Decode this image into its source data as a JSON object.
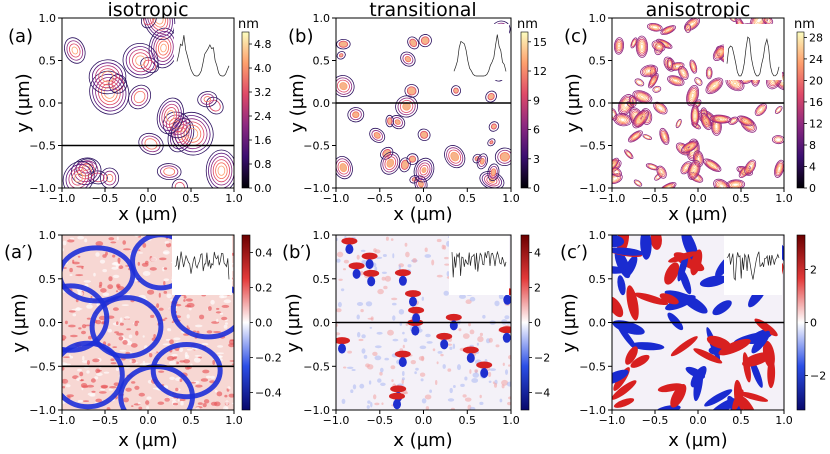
{
  "figure": {
    "x_label": "x (µm)",
    "y_label": "y (µm)",
    "axis_ticks": [
      "−1.0",
      "−0.5",
      "0.0",
      "0.5",
      "1.0"
    ],
    "axis_tick_values": [
      -1.0,
      -0.5,
      0.0,
      0.5,
      1.0
    ]
  },
  "chart_data": [
    {
      "type": "heatmap",
      "style": "contour",
      "label": "(a)",
      "title": "isotropic",
      "unit": "nm",
      "xlim": [
        -1,
        1
      ],
      "ylim": [
        -1,
        1
      ],
      "colorbar_ticks": [
        "0.0",
        "0.8",
        "1.6",
        "2.4",
        "3.2",
        "4.0",
        "4.8"
      ],
      "colorbar_values": [
        0.0,
        0.8,
        1.6,
        2.4,
        3.2,
        4.0,
        4.8
      ],
      "colorbar_range": [
        0,
        5.2
      ],
      "line_cut_y": -0.5,
      "inset": "height profile along cut",
      "colormap": [
        "#000004",
        "#3b0f70",
        "#8c2981",
        "#de4968",
        "#fe9f6d",
        "#fcfdbf"
      ]
    },
    {
      "type": "heatmap",
      "style": "contour",
      "label": "(b)",
      "title": "transitional",
      "unit": "nm",
      "xlim": [
        -1,
        1
      ],
      "ylim": [
        -1,
        1
      ],
      "colorbar_ticks": [
        "0",
        "3",
        "6",
        "9",
        "12",
        "15"
      ],
      "colorbar_values": [
        0,
        3,
        6,
        9,
        12,
        15
      ],
      "colorbar_range": [
        0,
        16
      ],
      "line_cut_y": 0.0,
      "inset": "height profile along cut",
      "colormap": [
        "#000004",
        "#3b0f70",
        "#8c2981",
        "#de4968",
        "#fe9f6d",
        "#fcfdbf"
      ]
    },
    {
      "type": "heatmap",
      "style": "contour",
      "label": "(c)",
      "title": "anisotropic",
      "unit": "nm",
      "xlim": [
        -1,
        1
      ],
      "ylim": [
        -1,
        1
      ],
      "colorbar_ticks": [
        "0",
        "4",
        "8",
        "12",
        "16",
        "20",
        "24",
        "28"
      ],
      "colorbar_values": [
        0,
        4,
        8,
        12,
        16,
        20,
        24,
        28
      ],
      "colorbar_range": [
        0,
        29
      ],
      "line_cut_y": 0.0,
      "inset": "height profile along cut",
      "colormap": [
        "#000004",
        "#3b0f70",
        "#8c2981",
        "#de4968",
        "#fe9f6d",
        "#fcfdbf"
      ]
    },
    {
      "type": "heatmap",
      "style": "image",
      "label": "(a′)",
      "xlim": [
        -1,
        1
      ],
      "ylim": [
        -1,
        1
      ],
      "colorbar_ticks": [
        "0.4",
        "0.2",
        "0.0",
        "−0.2",
        "−0.4"
      ],
      "colorbar_values": [
        0.4,
        0.2,
        0.0,
        -0.2,
        -0.4
      ],
      "colorbar_range": [
        -0.5,
        0.5
      ],
      "line_cut_y": -0.5,
      "inset": "curvature profile along cut",
      "colormap": [
        "#08086b",
        "#2b4ee6",
        "#ffffff",
        "#e33a3a",
        "#6b0000"
      ]
    },
    {
      "type": "heatmap",
      "style": "image",
      "label": "(b′)",
      "xlim": [
        -1,
        1
      ],
      "ylim": [
        -1,
        1
      ],
      "colorbar_ticks": [
        "4",
        "2",
        "0",
        "−2",
        "−4"
      ],
      "colorbar_values": [
        4,
        2,
        0,
        -2,
        -4
      ],
      "colorbar_range": [
        -5,
        5
      ],
      "line_cut_y": 0.0,
      "inset": "curvature profile along cut",
      "colormap": [
        "#08086b",
        "#2b4ee6",
        "#ffffff",
        "#e33a3a",
        "#6b0000"
      ]
    },
    {
      "type": "heatmap",
      "style": "image",
      "label": "(c′)",
      "xlim": [
        -1,
        1
      ],
      "ylim": [
        -1,
        1
      ],
      "colorbar_ticks": [
        "2",
        "0",
        "−2"
      ],
      "colorbar_values": [
        2,
        0,
        -2
      ],
      "colorbar_range": [
        -3.3,
        3.3
      ],
      "line_cut_y": 0.0,
      "inset": "curvature profile along cut",
      "colormap": [
        "#08086b",
        "#2b4ee6",
        "#ffffff",
        "#e33a3a",
        "#6b0000"
      ]
    }
  ]
}
